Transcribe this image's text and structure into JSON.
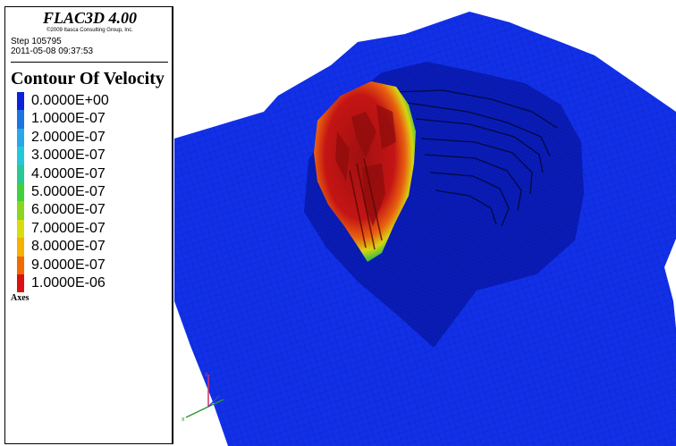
{
  "app": {
    "title": "FLAC3D 4.00",
    "copyright": "©2009 Itasca Consulting Group, Inc.",
    "step": "Step 105795",
    "datetime": "2011-05-08 09:37:53"
  },
  "legend": {
    "title": "Contour Of Velocity",
    "items": [
      {
        "label": "0.0000E+00",
        "color": "#0b22d8"
      },
      {
        "label": "1.0000E-07",
        "color": "#1c74e2"
      },
      {
        "label": "2.0000E-07",
        "color": "#28a8e8"
      },
      {
        "label": "3.0000E-07",
        "color": "#22c8d8"
      },
      {
        "label": "4.0000E-07",
        "color": "#27c894"
      },
      {
        "label": "5.0000E-07",
        "color": "#3fd23a"
      },
      {
        "label": "6.0000E-07",
        "color": "#8ad51d"
      },
      {
        "label": "7.0000E-07",
        "color": "#d8dc0f"
      },
      {
        "label": "8.0000E-07",
        "color": "#f5b000"
      },
      {
        "label": "9.0000E-07",
        "color": "#f06a00"
      },
      {
        "label": "1.0000E-06",
        "color": "#dc1010"
      }
    ],
    "axes_label": "Axes"
  },
  "viewport": {
    "mesh_color": "#1230e8",
    "pit_color": "#0a1cb8",
    "zone_colors": {
      "high": "#b81414",
      "mid": "#e86010",
      "low": "#3fc040"
    }
  }
}
